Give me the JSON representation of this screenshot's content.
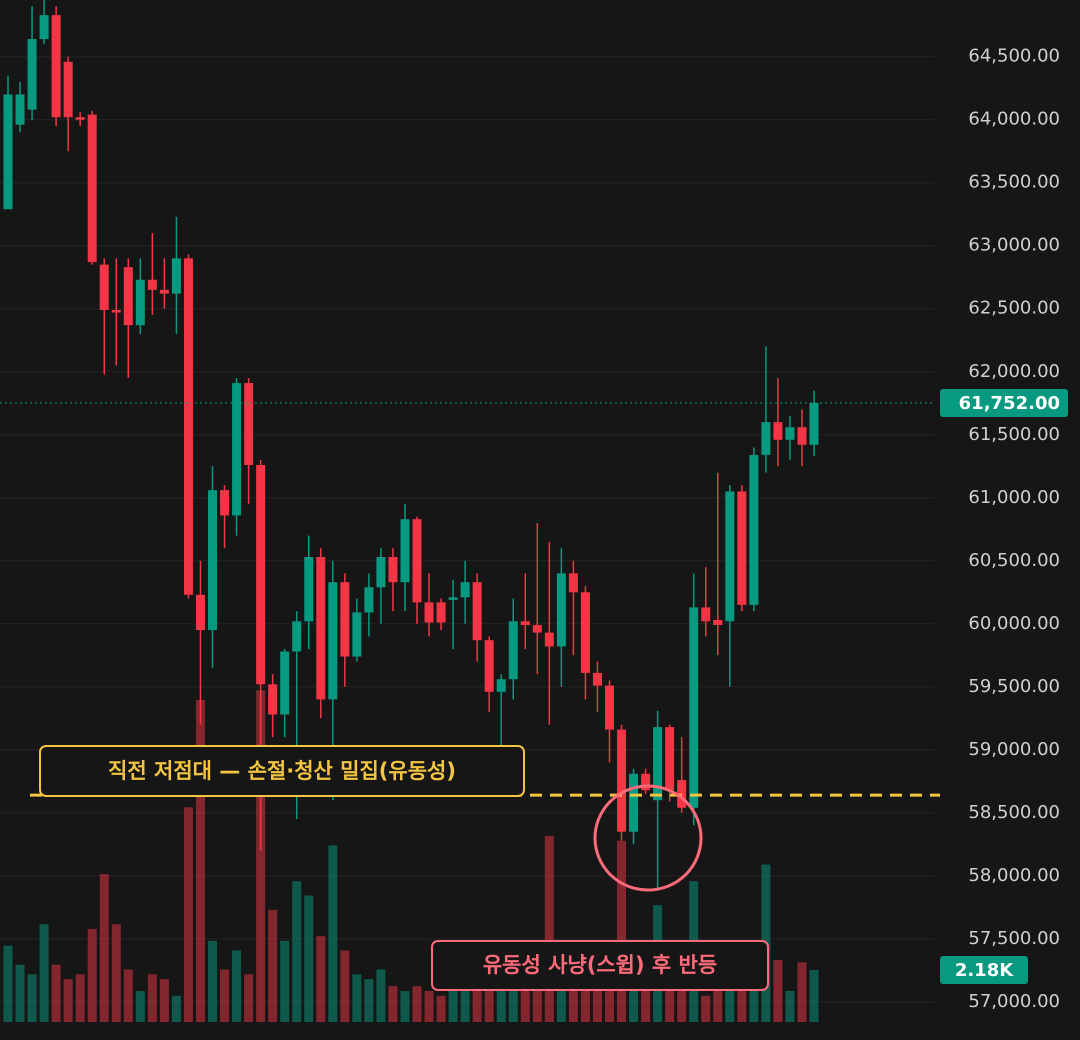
{
  "chart_data": {
    "type": "candlestick",
    "ylim": [
      56840,
      64950
    ],
    "yticks": [
      {
        "value": 57000,
        "label": "57,000.00"
      },
      {
        "value": 57500,
        "label": "57,500.00"
      },
      {
        "value": 58000,
        "label": "58,000.00"
      },
      {
        "value": 58500,
        "label": "58,500.00"
      },
      {
        "value": 59000,
        "label": "59,000.00"
      },
      {
        "value": 59500,
        "label": "59,500.00"
      },
      {
        "value": 60000,
        "label": "60,000.00"
      },
      {
        "value": 60500,
        "label": "60,500.00"
      },
      {
        "value": 61000,
        "label": "61,000.00"
      },
      {
        "value": 61500,
        "label": "61,500.00"
      },
      {
        "value": 62000,
        "label": "62,000.00"
      },
      {
        "value": 62500,
        "label": "62,500.00"
      },
      {
        "value": 63000,
        "label": "63,000.00"
      },
      {
        "value": 63500,
        "label": "63,500.00"
      },
      {
        "value": 64000,
        "label": "64,000.00"
      },
      {
        "value": 64500,
        "label": "64,500.00"
      }
    ],
    "grid": true,
    "up_color": "#089981",
    "down_color": "#f23645",
    "open": [
      63290,
      63960,
      64080,
      64640,
      64830,
      64460,
      64020,
      64040,
      62850,
      62490,
      62830,
      62370,
      62730,
      62650,
      62620,
      62900,
      60230,
      59950,
      61060,
      60860,
      61910,
      61260,
      59520,
      59280,
      59780,
      60020,
      60530,
      59400,
      60330,
      59740,
      60090,
      60290,
      60530,
      60330,
      60830,
      60170,
      60170,
      60190,
      60210,
      60330,
      59870,
      59460,
      59560,
      60020,
      59990,
      59930,
      59820,
      60400,
      60250,
      59610,
      59510,
      59160,
      58350,
      58810,
      58600,
      59180,
      58760,
      58540,
      60130,
      60030,
      60020,
      61050,
      60150,
      61340,
      61600,
      61460,
      61560,
      61420
    ],
    "high": [
      64350,
      64300,
      64900,
      64950,
      64900,
      64500,
      64060,
      64070,
      62900,
      62900,
      62900,
      62900,
      63100,
      62900,
      63230,
      62930,
      60500,
      61250,
      61100,
      61950,
      61950,
      61300,
      59600,
      59800,
      60100,
      60700,
      60600,
      60500,
      60400,
      60200,
      60400,
      60600,
      60600,
      60950,
      60850,
      60400,
      60200,
      60350,
      60500,
      60400,
      59900,
      59600,
      60200,
      60400,
      60800,
      60650,
      60600,
      60500,
      60300,
      59700,
      59550,
      59200,
      58850,
      58850,
      59310,
      59200,
      59100,
      60400,
      60450,
      61200,
      61100,
      61100,
      61400,
      62200,
      61950,
      61650,
      61700,
      61850
    ],
    "low": [
      63290,
      63900,
      64000,
      64600,
      63950,
      63750,
      63950,
      62850,
      61980,
      62050,
      61950,
      62300,
      62450,
      62500,
      62300,
      60200,
      59200,
      59650,
      60600,
      60700,
      60950,
      58200,
      59100,
      59100,
      58450,
      59800,
      59250,
      58600,
      59500,
      59700,
      59900,
      60000,
      60100,
      60100,
      60000,
      59900,
      59950,
      59800,
      60000,
      59700,
      59300,
      58800,
      59400,
      59800,
      59600,
      59200,
      59500,
      59750,
      59400,
      59300,
      58900,
      58280,
      58250,
      58650,
      57890,
      58590,
      58500,
      58400,
      59900,
      59750,
      59500,
      60100,
      60100,
      61200,
      61250,
      61300,
      61250,
      61330
    ],
    "close": [
      64200,
      64200,
      64640,
      64830,
      64020,
      64020,
      64000,
      62870,
      62490,
      62470,
      62370,
      62730,
      62650,
      62620,
      62900,
      60230,
      59950,
      61060,
      60860,
      61910,
      61260,
      59520,
      59280,
      59780,
      60020,
      60530,
      59400,
      60330,
      59740,
      60090,
      60290,
      60530,
      60330,
      60830,
      60170,
      60010,
      60010,
      60210,
      60330,
      59870,
      59460,
      59560,
      60020,
      59990,
      59930,
      59820,
      60400,
      60250,
      59610,
      59510,
      59160,
      58350,
      58810,
      58680,
      59180,
      58680,
      58540,
      60130,
      60020,
      59990,
      61050,
      60150,
      61340,
      61600,
      61460,
      61560,
      61420,
      61752
    ],
    "volume": [
      3.2,
      2.4,
      2.0,
      4.1,
      2.4,
      1.8,
      2.0,
      3.9,
      6.2,
      4.1,
      2.2,
      1.3,
      2.0,
      1.8,
      1.1,
      9.0,
      13.5,
      3.4,
      2.2,
      3.0,
      2.0,
      13.9,
      4.7,
      3.4,
      5.9,
      5.3,
      3.6,
      7.4,
      3.0,
      2.0,
      1.8,
      2.2,
      1.5,
      1.3,
      1.5,
      1.3,
      1.1,
      1.5,
      1.3,
      2.0,
      2.6,
      2.0,
      1.3,
      1.5,
      1.8,
      7.8,
      2.0,
      1.5,
      2.0,
      2.4,
      2.6,
      7.6,
      3.0,
      1.3,
      4.9,
      2.6,
      3.2,
      5.9,
      1.1,
      1.5,
      1.3,
      1.8,
      2.6,
      6.6,
      2.6,
      1.3,
      2.5,
      2.18
    ],
    "volume_lim": [
      0,
      14.25
    ],
    "last_price": {
      "value": 61752,
      "label": "61,752.00"
    },
    "last_volume": {
      "value": 2.18,
      "label": "2.18K"
    },
    "annotations": [
      {
        "text": "직전 저점대 — 손절·청산 밀집(유동성)",
        "value": 58640
      },
      {
        "text": "유동성 사냥(스윕) 후 반등"
      }
    ]
  }
}
